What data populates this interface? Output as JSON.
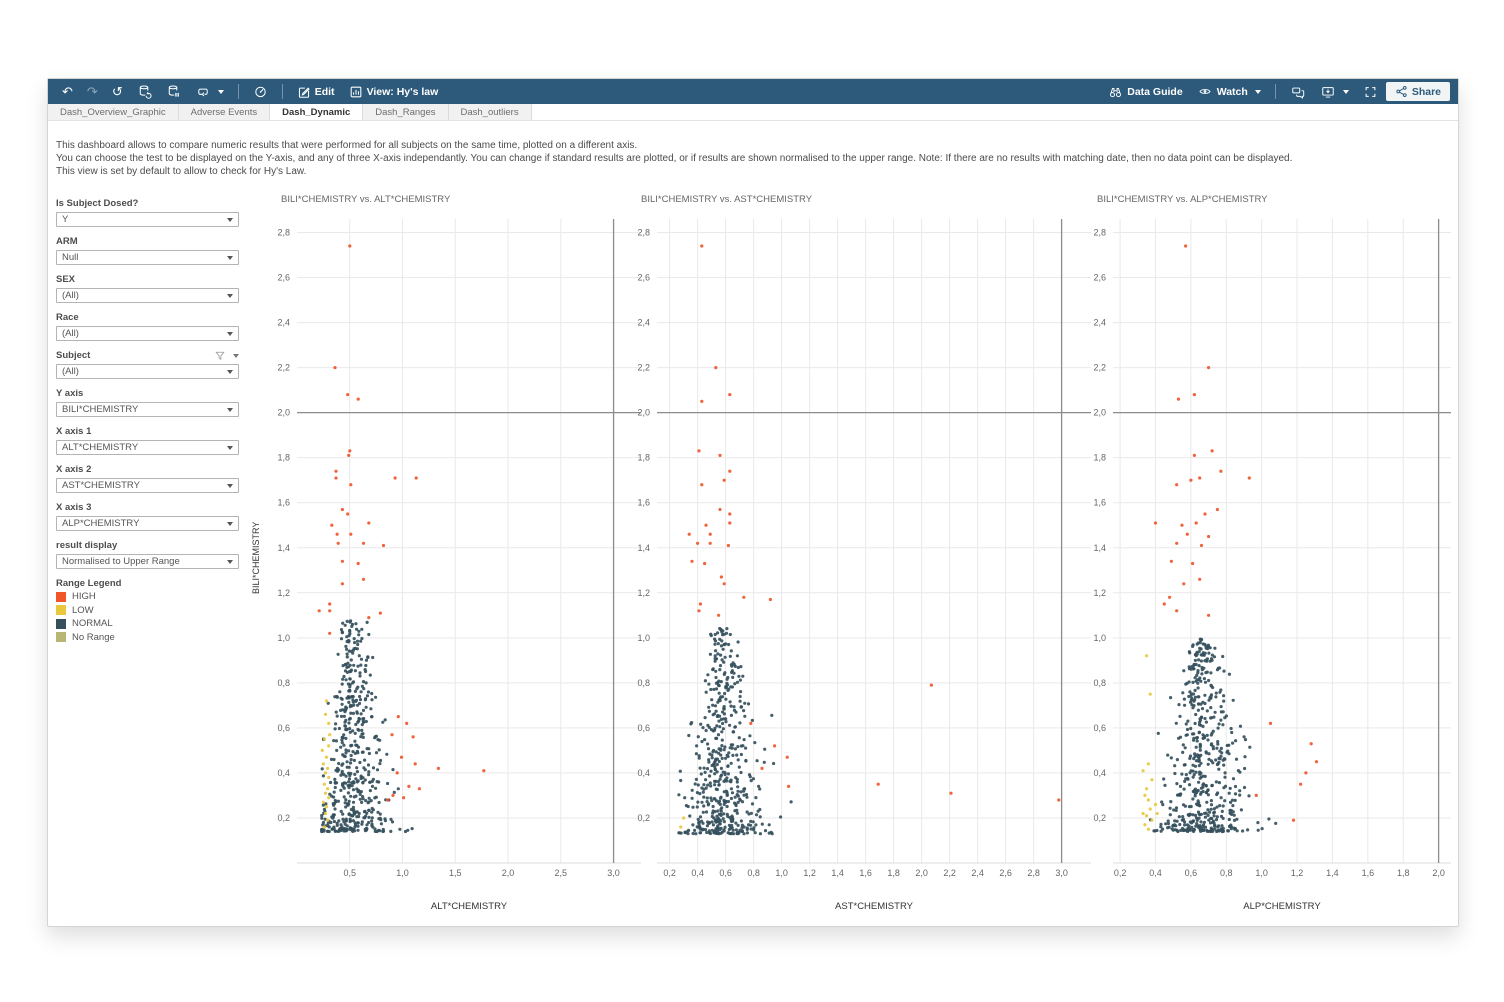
{
  "toolbar": {
    "edit_label": "Edit",
    "view_label": "View: Hy's law",
    "data_guide_label": "Data Guide",
    "watch_label": "Watch",
    "share_label": "Share"
  },
  "tabs": [
    {
      "label": "Dash_Overview_Graphic",
      "active": false
    },
    {
      "label": "Adverse Events",
      "active": false
    },
    {
      "label": "Dash_Dynamic",
      "active": true
    },
    {
      "label": "Dash_Ranges",
      "active": false
    },
    {
      "label": "Dash_outliers",
      "active": false
    }
  ],
  "description": {
    "line1": "This dashboard allows to compare numeric results that were performed for all subjects on the same time, plotted on a different axis.",
    "line2": "You can choose the test to be displayed on the Y-axis, and any of three X-axis independantly. You can change if standard results are plotted, or if results are shown normalised to the upper range. Note: If there are no results with matching date, then no data point can be displayed.",
    "line3": "This view is set by default to allow to check for Hy's Law."
  },
  "filters": [
    {
      "id": "is-subject-dosed",
      "label": "Is Subject Dosed?",
      "value": "Y",
      "extra_icons": false
    },
    {
      "id": "arm",
      "label": "ARM",
      "value": "Null",
      "extra_icons": false
    },
    {
      "id": "sex",
      "label": "SEX",
      "value": "(All)",
      "extra_icons": false
    },
    {
      "id": "race",
      "label": "Race",
      "value": "(All)",
      "extra_icons": false
    },
    {
      "id": "subject",
      "label": "Subject",
      "value": "(All)",
      "extra_icons": true
    },
    {
      "id": "y-axis",
      "label": "Y axis",
      "value": "BILI*CHEMISTRY",
      "extra_icons": false
    },
    {
      "id": "x-axis-1",
      "label": "X axis 1",
      "value": "ALT*CHEMISTRY",
      "extra_icons": false
    },
    {
      "id": "x-axis-2",
      "label": "X axis 2",
      "value": "AST*CHEMISTRY",
      "extra_icons": false
    },
    {
      "id": "x-axis-3",
      "label": "X axis 3",
      "value": "ALP*CHEMISTRY",
      "extra_icons": false
    },
    {
      "id": "result-display",
      "label": "result display",
      "value": "Normalised to Upper Range",
      "extra_icons": false
    }
  ],
  "legend": {
    "title": "Range Legend",
    "items": [
      {
        "label": "HIGH",
        "color": "#f0562a"
      },
      {
        "label": "LOW",
        "color": "#e9c83d"
      },
      {
        "label": "NORMAL",
        "color": "#35505c"
      },
      {
        "label": "No Range",
        "color": "#b9b573"
      }
    ]
  },
  "y_axis_label": "BILI*CHEMISTRY",
  "colors": {
    "grid": "#e9e9e9",
    "ref_line": "#8c8c8c",
    "tick_text": "#666666",
    "axis_base": "#dddddd"
  },
  "chart_data": [
    {
      "type": "scatter",
      "title": "BILI*CHEMISTRY vs. ALT*CHEMISTRY",
      "xlabel": "ALT*CHEMISTRY",
      "ylabel": "BILI*CHEMISTRY",
      "xlim": [
        0.0,
        3.26
      ],
      "ylim": [
        0.0,
        2.86
      ],
      "x_ticks": [
        0.5,
        1.0,
        1.5,
        2.0,
        2.5,
        3.0
      ],
      "y_ticks": [
        0.2,
        0.4,
        0.6,
        0.8,
        1.0,
        1.2,
        1.4,
        1.6,
        1.8,
        2.0,
        2.2,
        2.4,
        2.6,
        2.8
      ],
      "ref_line_y": 2.0,
      "ref_line_x": 3.0,
      "grid": true,
      "series": [
        {
          "name": "HIGH",
          "points": [
            [
              0.5,
              2.74
            ],
            [
              0.36,
              2.2
            ],
            [
              0.48,
              2.08
            ],
            [
              0.58,
              2.06
            ],
            [
              0.5,
              1.83
            ],
            [
              0.49,
              1.81
            ],
            [
              0.37,
              1.74
            ],
            [
              0.37,
              1.71
            ],
            [
              0.93,
              1.71
            ],
            [
              1.13,
              1.71
            ],
            [
              0.51,
              1.68
            ],
            [
              0.43,
              1.57
            ],
            [
              0.48,
              1.55
            ],
            [
              0.68,
              1.51
            ],
            [
              0.33,
              1.5
            ],
            [
              0.38,
              1.46
            ],
            [
              0.51,
              1.46
            ],
            [
              0.39,
              1.42
            ],
            [
              0.63,
              1.42
            ],
            [
              0.82,
              1.41
            ],
            [
              0.43,
              1.34
            ],
            [
              0.58,
              1.33
            ],
            [
              0.63,
              1.26
            ],
            [
              0.43,
              1.24
            ],
            [
              0.31,
              1.15
            ],
            [
              0.21,
              1.12
            ],
            [
              0.31,
              1.12
            ],
            [
              0.79,
              1.11
            ],
            [
              0.68,
              1.09
            ],
            [
              0.31,
              1.02
            ],
            [
              0.96,
              0.65
            ],
            [
              1.04,
              0.62
            ],
            [
              0.9,
              0.57
            ],
            [
              1.1,
              0.56
            ],
            [
              0.99,
              0.47
            ],
            [
              1.34,
              0.42
            ],
            [
              1.77,
              0.41
            ],
            [
              1.12,
              0.44
            ],
            [
              0.95,
              0.4
            ],
            [
              1.06,
              0.34
            ],
            [
              0.91,
              0.3
            ],
            [
              1.01,
              0.29
            ],
            [
              0.86,
              0.28
            ],
            [
              1.16,
              0.33
            ]
          ]
        },
        {
          "name": "LOW",
          "points": [
            [
              0.28,
              0.72
            ],
            [
              0.27,
              0.66
            ],
            [
              0.3,
              0.62
            ],
            [
              0.26,
              0.55
            ],
            [
              0.31,
              0.57
            ],
            [
              0.3,
              0.52
            ],
            [
              0.28,
              0.47
            ],
            [
              0.25,
              0.44
            ],
            [
              0.29,
              0.42
            ],
            [
              0.27,
              0.4
            ],
            [
              0.3,
              0.38
            ],
            [
              0.26,
              0.35
            ],
            [
              0.29,
              0.33
            ],
            [
              0.27,
              0.31
            ],
            [
              0.3,
              0.29
            ],
            [
              0.25,
              0.27
            ],
            [
              0.28,
              0.25
            ],
            [
              0.27,
              0.22
            ],
            [
              0.29,
              0.19
            ],
            [
              0.26,
              0.16
            ],
            [
              0.24,
              0.5
            ]
          ]
        },
        {
          "name": "NORMAL",
          "cluster": {
            "count": 520,
            "seed": 101,
            "x_center": 0.52,
            "x_spread": 0.3,
            "x_min": 0.23,
            "x_max": 1.8,
            "y_min": 0.14,
            "y_top": 1.08
          }
        }
      ]
    },
    {
      "type": "scatter",
      "title": "BILI*CHEMISTRY vs. AST*CHEMISTRY",
      "xlabel": "AST*CHEMISTRY",
      "ylabel": "BILI*CHEMISTRY",
      "xlim": [
        0.11,
        3.21
      ],
      "ylim": [
        0.0,
        2.86
      ],
      "x_ticks": [
        0.2,
        0.4,
        0.6,
        0.8,
        1.0,
        1.2,
        1.4,
        1.6,
        1.8,
        2.0,
        2.2,
        2.4,
        2.6,
        2.8,
        3.0
      ],
      "y_ticks": [
        0.2,
        0.4,
        0.6,
        0.8,
        1.0,
        1.2,
        1.4,
        1.6,
        1.8,
        2.0,
        2.2,
        2.4,
        2.6,
        2.8
      ],
      "ref_line_y": 2.0,
      "ref_line_x": 3.0,
      "grid": true,
      "series": [
        {
          "name": "HIGH",
          "points": [
            [
              0.43,
              2.74
            ],
            [
              0.53,
              2.2
            ],
            [
              0.63,
              2.08
            ],
            [
              0.43,
              2.05
            ],
            [
              0.41,
              1.83
            ],
            [
              0.56,
              1.81
            ],
            [
              0.63,
              1.74
            ],
            [
              0.59,
              1.7
            ],
            [
              0.43,
              1.68
            ],
            [
              0.56,
              1.57
            ],
            [
              0.63,
              1.55
            ],
            [
              0.63,
              1.51
            ],
            [
              0.46,
              1.5
            ],
            [
              0.34,
              1.46
            ],
            [
              0.49,
              1.46
            ],
            [
              0.4,
              1.42
            ],
            [
              0.49,
              1.42
            ],
            [
              0.62,
              1.41
            ],
            [
              0.36,
              1.34
            ],
            [
              0.45,
              1.33
            ],
            [
              0.57,
              1.27
            ],
            [
              0.59,
              1.24
            ],
            [
              0.92,
              1.17
            ],
            [
              0.42,
              1.15
            ],
            [
              0.41,
              1.12
            ],
            [
              0.55,
              1.1
            ],
            [
              0.73,
              1.18
            ],
            [
              2.07,
              0.79
            ],
            [
              1.04,
              0.47
            ],
            [
              1.05,
              0.34
            ],
            [
              1.69,
              0.35
            ],
            [
              2.21,
              0.31
            ],
            [
              2.98,
              0.28
            ],
            [
              0.95,
              0.52
            ],
            [
              0.86,
              0.42
            ],
            [
              0.78,
              0.62
            ]
          ]
        },
        {
          "name": "LOW",
          "points": [
            [
              0.3,
              0.2
            ],
            [
              0.28,
              0.16
            ]
          ]
        },
        {
          "name": "NORMAL",
          "cluster": {
            "count": 520,
            "seed": 202,
            "x_center": 0.58,
            "x_spread": 0.26,
            "x_min": 0.26,
            "x_max": 1.55,
            "y_min": 0.13,
            "y_top": 1.05
          }
        }
      ]
    },
    {
      "type": "scatter",
      "title": "BILI*CHEMISTRY vs. ALP*CHEMISTRY",
      "xlabel": "ALP*CHEMISTRY",
      "ylabel": "BILI*CHEMISTRY",
      "xlim": [
        0.16,
        2.07
      ],
      "ylim": [
        0.0,
        2.86
      ],
      "x_ticks": [
        0.2,
        0.4,
        0.6,
        0.8,
        1.0,
        1.2,
        1.4,
        1.6,
        1.8,
        2.0
      ],
      "y_ticks": [
        0.2,
        0.4,
        0.6,
        0.8,
        1.0,
        1.2,
        1.4,
        1.6,
        1.8,
        2.0,
        2.2,
        2.4,
        2.6,
        2.8
      ],
      "ref_line_y": 2.0,
      "ref_line_x": 2.0,
      "grid": true,
      "series": [
        {
          "name": "HIGH",
          "points": [
            [
              0.57,
              2.74
            ],
            [
              0.7,
              2.2
            ],
            [
              0.53,
              2.06
            ],
            [
              0.62,
              2.08
            ],
            [
              0.72,
              1.83
            ],
            [
              0.62,
              1.81
            ],
            [
              0.77,
              1.74
            ],
            [
              0.65,
              1.71
            ],
            [
              0.93,
              1.71
            ],
            [
              0.6,
              1.7
            ],
            [
              0.52,
              1.68
            ],
            [
              0.75,
              1.57
            ],
            [
              0.68,
              1.55
            ],
            [
              0.4,
              1.51
            ],
            [
              0.63,
              1.51
            ],
            [
              0.55,
              1.5
            ],
            [
              0.58,
              1.46
            ],
            [
              0.7,
              1.45
            ],
            [
              0.52,
              1.42
            ],
            [
              0.66,
              1.41
            ],
            [
              0.49,
              1.34
            ],
            [
              0.61,
              1.33
            ],
            [
              0.65,
              1.26
            ],
            [
              0.56,
              1.24
            ],
            [
              0.48,
              1.18
            ],
            [
              0.45,
              1.15
            ],
            [
              0.52,
              1.12
            ],
            [
              0.7,
              1.1
            ],
            [
              1.28,
              0.53
            ],
            [
              1.31,
              0.45
            ],
            [
              1.25,
              0.4
            ],
            [
              1.22,
              0.35
            ],
            [
              1.18,
              0.19
            ],
            [
              1.05,
              0.62
            ],
            [
              0.97,
              0.3
            ]
          ]
        },
        {
          "name": "LOW",
          "points": [
            [
              0.35,
              0.92
            ],
            [
              0.37,
              0.75
            ],
            [
              0.36,
              0.44
            ],
            [
              0.33,
              0.41
            ],
            [
              0.38,
              0.37
            ],
            [
              0.35,
              0.33
            ],
            [
              0.34,
              0.3
            ],
            [
              0.36,
              0.28
            ],
            [
              0.37,
              0.24
            ],
            [
              0.33,
              0.22
            ],
            [
              0.35,
              0.21
            ],
            [
              0.38,
              0.19
            ],
            [
              0.34,
              0.17
            ],
            [
              0.36,
              0.15
            ],
            [
              0.4,
              0.26
            ],
            [
              0.41,
              0.22
            ]
          ]
        },
        {
          "name": "NORMAL",
          "cluster": {
            "count": 540,
            "seed": 303,
            "x_center": 0.66,
            "x_spread": 0.22,
            "x_min": 0.34,
            "x_max": 1.35,
            "y_min": 0.14,
            "y_top": 1.0
          }
        }
      ]
    }
  ]
}
